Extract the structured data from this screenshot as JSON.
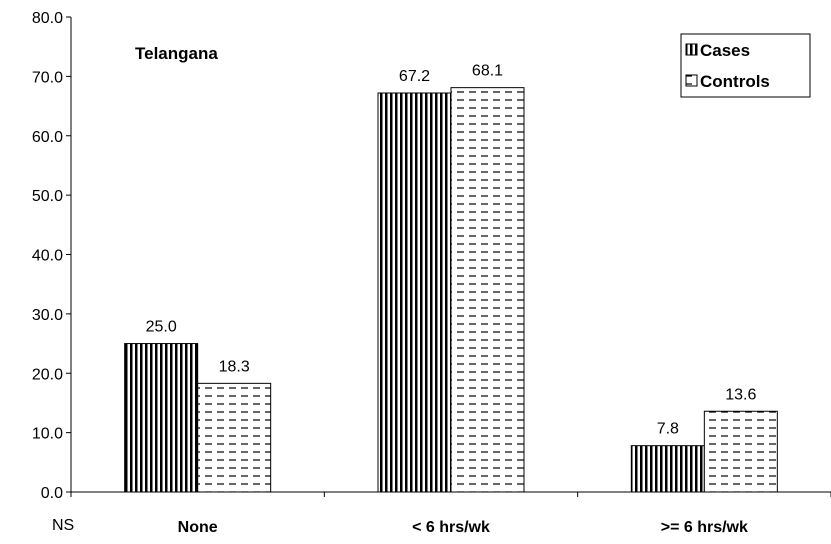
{
  "chart_data": {
    "type": "bar",
    "title": "Telangana",
    "categories": [
      "None",
      "< 6 hrs/wk",
      ">= 6 hrs/wk"
    ],
    "series": [
      {
        "name": "Cases",
        "values": [
          25.0,
          67.2,
          7.8
        ],
        "labels": [
          "25.0",
          "67.2",
          "7.8"
        ],
        "pattern": "vertical-stripes"
      },
      {
        "name": "Controls",
        "values": [
          18.3,
          68.1,
          13.6
        ],
        "labels": [
          "18.3",
          "68.1",
          "13.6"
        ],
        "pattern": "horizontal-dashes"
      }
    ],
    "ylim": [
      0,
      80
    ],
    "yticks": [
      "0.0",
      "10.0",
      "20.0",
      "30.0",
      "40.0",
      "50.0",
      "60.0",
      "70.0",
      "80.0"
    ],
    "ytick_values": [
      0,
      10,
      20,
      30,
      40,
      50,
      60,
      70,
      80
    ],
    "legend_position": "top-right",
    "grid": false,
    "footnote": "NS"
  }
}
